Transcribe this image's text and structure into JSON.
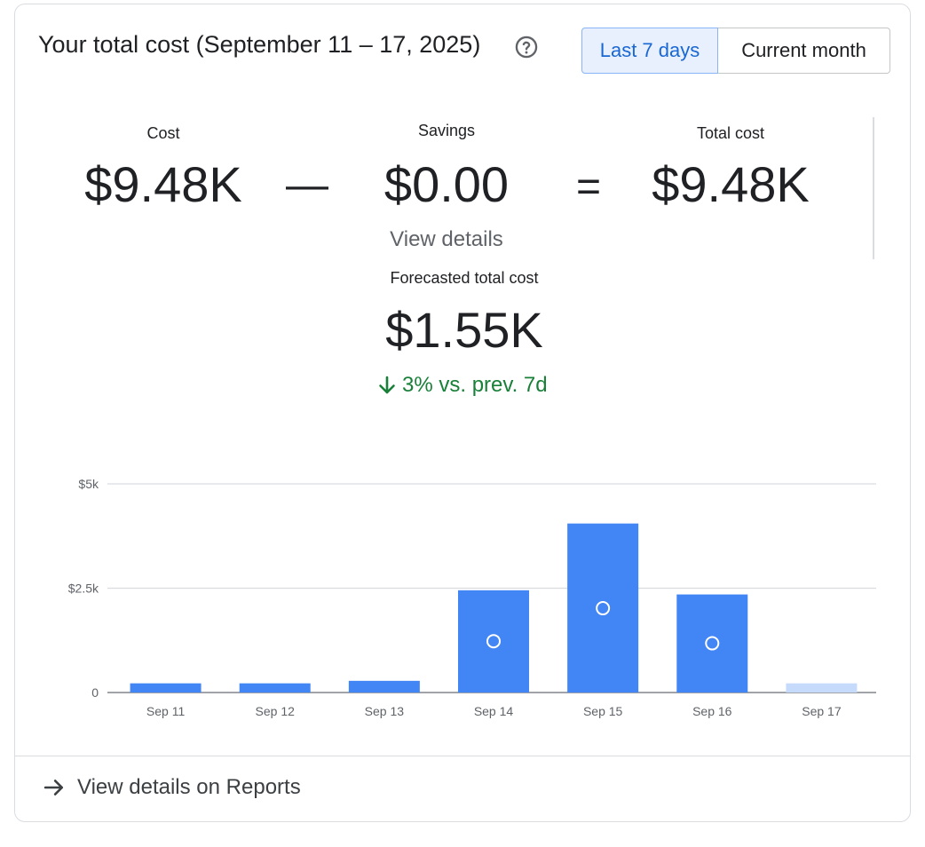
{
  "header": {
    "title": "Your total cost (September 11 – 17, 2025)",
    "help_icon": "help-circle-icon",
    "toggle": {
      "last7": "Last 7 days",
      "current_month": "Current month",
      "selected": "last7"
    }
  },
  "summary": {
    "cost_label": "Cost",
    "cost_value": "$9.48K",
    "minus": "—",
    "savings_label": "Savings",
    "savings_value": "$0.00",
    "equals": "=",
    "total_label": "Total cost",
    "total_value": "$9.48K",
    "view_details": "View details",
    "forecast_label": "Forecasted total cost",
    "forecast_value": "$1.55K",
    "trend_icon": "arrow-down-icon",
    "trend_text": "3% vs. prev. 7d"
  },
  "footer": {
    "link_icon": "arrow-right-icon",
    "link_text": "View details on Reports"
  },
  "colors": {
    "bar": "#4285f4",
    "bar_forecast": "#c6dafc",
    "trend_down": "#188038",
    "accent": "#1967d2"
  },
  "chart_data": {
    "type": "bar",
    "categories": [
      "Sep 11",
      "Sep 12",
      "Sep 13",
      "Sep 14",
      "Sep 15",
      "Sep 16",
      "Sep 17"
    ],
    "values": [
      220,
      220,
      280,
      2450,
      4050,
      2350,
      220
    ],
    "markers": [
      null,
      null,
      null,
      1230,
      2020,
      1180,
      null
    ],
    "forecast": [
      false,
      false,
      false,
      false,
      false,
      false,
      true
    ],
    "yticks": [
      {
        "value": 0,
        "label": "0"
      },
      {
        "value": 2500,
        "label": "$2.5k"
      },
      {
        "value": 5000,
        "label": "$5k"
      }
    ],
    "ylim": [
      0,
      5000
    ]
  }
}
